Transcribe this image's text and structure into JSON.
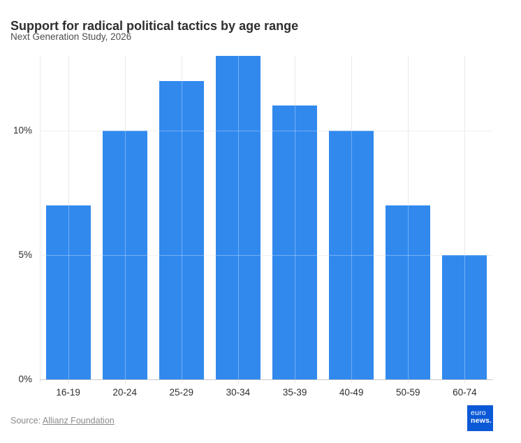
{
  "header": {
    "title": "Support for radical political tactics by age range",
    "subtitle": "Next Generation Study, 2026"
  },
  "chart_data": {
    "type": "bar",
    "title": "Support for radical political tactics by age range",
    "subtitle": "Next Generation Study, 2026",
    "categories": [
      "16-19",
      "20-24",
      "25-29",
      "30-34",
      "35-39",
      "40-49",
      "50-59",
      "60-74"
    ],
    "values": [
      7,
      10,
      12,
      13,
      11,
      10,
      7,
      5
    ],
    "unit": "%",
    "xlabel": "",
    "ylabel": "",
    "ylim": [
      0,
      13
    ],
    "yticks": [
      {
        "value": 0,
        "label": "0%"
      },
      {
        "value": 5,
        "label": "5%"
      },
      {
        "value": 10,
        "label": "10%"
      }
    ],
    "grid": true,
    "legend": "none",
    "bar_color": "#3189ee"
  },
  "footer": {
    "source_prefix": "Source:",
    "source_link": "Allianz Foundation",
    "logo_line1": "euro",
    "logo_line2": "news."
  },
  "colors": {
    "bar": "#3189ee",
    "grid": "#e9e9e9",
    "axis": "#c8c8c8",
    "logo_bg": "#0b59d6"
  }
}
